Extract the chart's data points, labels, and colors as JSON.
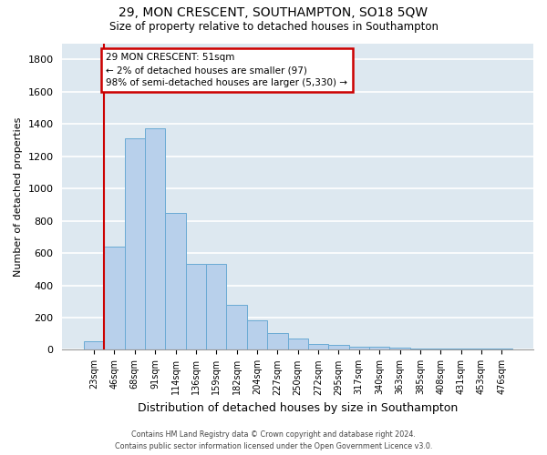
{
  "title1": "29, MON CRESCENT, SOUTHAMPTON, SO18 5QW",
  "title2": "Size of property relative to detached houses in Southampton",
  "xlabel": "Distribution of detached houses by size in Southampton",
  "ylabel": "Number of detached properties",
  "categories": [
    "23sqm",
    "46sqm",
    "68sqm",
    "91sqm",
    "114sqm",
    "136sqm",
    "159sqm",
    "182sqm",
    "204sqm",
    "227sqm",
    "250sqm",
    "272sqm",
    "295sqm",
    "317sqm",
    "340sqm",
    "363sqm",
    "385sqm",
    "408sqm",
    "431sqm",
    "453sqm",
    "476sqm"
  ],
  "values": [
    55,
    640,
    1310,
    1370,
    850,
    530,
    530,
    280,
    185,
    105,
    70,
    35,
    30,
    20,
    20,
    15,
    10,
    10,
    10,
    10,
    10
  ],
  "bar_color": "#b8d0eb",
  "bar_edge_color": "#6aaad4",
  "annotation_title": "29 MON CRESCENT: 51sqm",
  "annotation_line1": "← 2% of detached houses are smaller (97)",
  "annotation_line2": "98% of semi-detached houses are larger (5,330) →",
  "annotation_box_color": "#ffffff",
  "annotation_box_edge": "#cc0000",
  "ref_line_color": "#cc0000",
  "ylim": [
    0,
    1900
  ],
  "yticks": [
    0,
    200,
    400,
    600,
    800,
    1000,
    1200,
    1400,
    1600,
    1800
  ],
  "background_color": "#dde8f0",
  "grid_color": "#ffffff",
  "footer1": "Contains HM Land Registry data © Crown copyright and database right 2024.",
  "footer2": "Contains public sector information licensed under the Open Government Licence v3.0."
}
